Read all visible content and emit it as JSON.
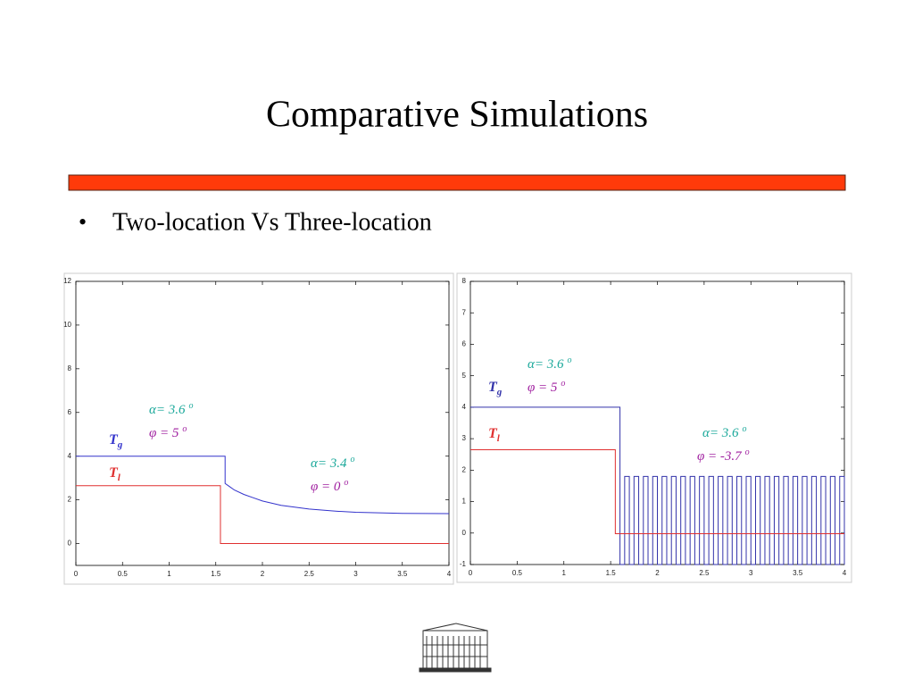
{
  "title": "Comparative Simulations",
  "bullets": [
    "Two-location Vs Three-location"
  ],
  "chart_data": [
    {
      "type": "line",
      "xlim": [
        0,
        4
      ],
      "ylim": [
        -1,
        12
      ],
      "xticks": [
        0,
        0.5,
        1,
        1.5,
        2,
        2.5,
        3,
        3.5,
        4
      ],
      "yticks": [
        0,
        2,
        4,
        6,
        8,
        10,
        12
      ],
      "series": [
        {
          "name": "T",
          "subscript": "g",
          "color": "#3333cc",
          "x": [
            0,
            1.6,
            1.6,
            1.65,
            1.7,
            1.8,
            1.9,
            2.0,
            2.2,
            2.5,
            2.8,
            3.0,
            3.5,
            4
          ],
          "values": [
            4,
            4,
            2.75,
            2.6,
            2.45,
            2.25,
            2.1,
            1.95,
            1.75,
            1.58,
            1.48,
            1.43,
            1.38,
            1.37
          ]
        },
        {
          "name": "T",
          "subscript": "l",
          "color": "#e03030",
          "x": [
            0,
            1.55,
            1.55,
            4
          ],
          "values": [
            2.65,
            2.65,
            0,
            0
          ]
        }
      ],
      "annotations": [
        {
          "text": "α= 3.6",
          "sup": "o",
          "color": "#1aa89a"
        },
        {
          "text": "φ = 5",
          "sup": "o",
          "color": "#a020a0"
        },
        {
          "text": "α= 3.4",
          "sup": "o",
          "color": "#1aa89a"
        },
        {
          "text": "φ = 0",
          "sup": "o",
          "color": "#a020a0"
        }
      ]
    },
    {
      "type": "line",
      "xlim": [
        0,
        4
      ],
      "ylim": [
        -1,
        8
      ],
      "xticks": [
        0,
        0.5,
        1,
        1.5,
        2,
        2.5,
        3,
        3.5,
        4
      ],
      "yticks": [
        -1,
        0,
        1,
        2,
        3,
        4,
        5,
        6,
        7,
        8
      ],
      "series": [
        {
          "name": "T",
          "subscript": "g",
          "color": "#3333aa",
          "x": [
            0,
            1.6,
            1.6,
            1.65,
            1.65,
            1.7,
            1.7,
            1.75,
            1.75,
            1.8,
            1.8,
            1.85,
            1.85,
            1.9,
            1.9,
            1.95,
            1.95,
            2,
            2,
            2.05,
            2.05,
            2.1,
            2.1,
            2.15,
            2.15,
            2.2,
            2.2,
            2.25,
            2.25,
            2.3,
            2.3,
            2.35,
            2.35,
            2.4,
            2.4,
            2.45,
            2.45,
            2.5,
            2.5,
            2.55,
            2.55,
            2.6,
            2.6,
            2.65,
            2.65,
            2.7,
            2.7,
            2.75,
            2.75,
            2.8,
            2.8,
            2.85,
            2.85,
            2.9,
            2.9,
            2.95,
            2.95,
            3,
            3,
            3.05,
            3.05,
            3.1,
            3.1,
            3.15,
            3.15,
            3.2,
            3.2,
            3.25,
            3.25,
            3.3,
            3.3,
            3.35,
            3.35,
            3.4,
            3.4,
            3.45,
            3.45,
            3.5,
            3.5,
            3.55,
            3.55,
            3.6,
            3.6,
            3.65,
            3.65,
            3.7,
            3.7,
            3.75,
            3.75,
            3.8,
            3.8,
            3.85,
            3.85,
            3.9,
            3.9,
            3.95,
            3.95,
            4,
            4
          ],
          "values": [
            4,
            4,
            -1,
            -1,
            1.8,
            1.8,
            -1,
            -1,
            1.8,
            1.8,
            -1,
            -1,
            1.8,
            1.8,
            -1,
            -1,
            1.8,
            1.8,
            -1,
            -1,
            1.8,
            1.8,
            -1,
            -1,
            1.8,
            1.8,
            -1,
            -1,
            1.8,
            1.8,
            -1,
            -1,
            1.8,
            1.8,
            -1,
            -1,
            1.8,
            1.8,
            -1,
            -1,
            1.8,
            1.8,
            -1,
            -1,
            1.8,
            1.8,
            -1,
            -1,
            1.8,
            1.8,
            -1,
            -1,
            1.8,
            1.8,
            -1,
            -1,
            1.8,
            1.8,
            -1,
            -1,
            1.8,
            1.8,
            -1,
            -1,
            1.8,
            1.8,
            -1,
            -1,
            1.8,
            1.8,
            -1,
            -1,
            1.8,
            1.8,
            -1,
            -1,
            1.8,
            1.8,
            -1,
            -1,
            1.8,
            1.8,
            -1,
            -1,
            1.8,
            1.8,
            -1,
            -1,
            1.8,
            1.8,
            -1,
            -1,
            1.8,
            1.8,
            -1,
            -1,
            1.8,
            1.8,
            -1
          ]
        },
        {
          "name": "T",
          "subscript": "l",
          "color": "#e03030",
          "x": [
            0,
            1.55,
            1.55,
            4
          ],
          "values": [
            2.65,
            2.65,
            -0.02,
            -0.02
          ]
        }
      ],
      "annotations": [
        {
          "text": "α= 3.6",
          "sup": "o",
          "color": "#1aa89a"
        },
        {
          "text": "φ = 5",
          "sup": "o",
          "color": "#a020a0"
        },
        {
          "text": "α= 3.6",
          "sup": "o",
          "color": "#1aa89a"
        },
        {
          "text": "φ = -3.7",
          "sup": "o",
          "color": "#a020a0"
        }
      ]
    }
  ]
}
